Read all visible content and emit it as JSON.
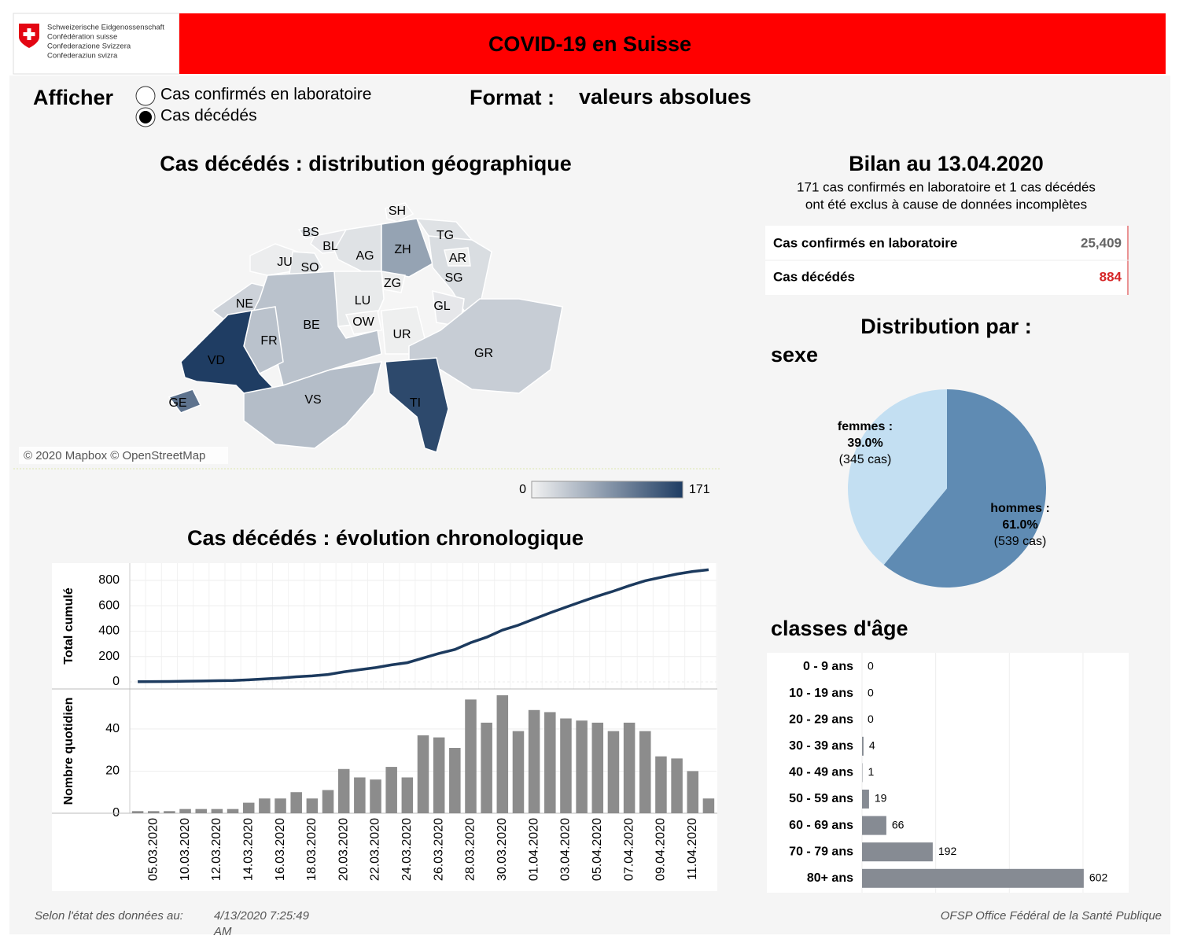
{
  "header": {
    "logo_lines": [
      "Schweizerische Eidgenossenschaft",
      "Confédération suisse",
      "Confederazione Svizzera",
      "Confederaziun svizra"
    ],
    "title": "COVID-19 en Suisse"
  },
  "controls": {
    "afficher_label": "Afficher",
    "options": [
      {
        "label": "Cas confirmés en laboratoire",
        "selected": false
      },
      {
        "label": "Cas décédés",
        "selected": true
      }
    ],
    "format_label": "Format :",
    "format_value": "valeurs absolues"
  },
  "map": {
    "title": "Cas décédés : distribution géographique",
    "attribution": "© 2020 Mapbox © OpenStreetMap",
    "legend_min": 0,
    "legend_max": 171,
    "color_low": "#f2f2f2",
    "color_high": "#1f3d63",
    "cantons": [
      {
        "code": "SH",
        "value": 2
      },
      {
        "code": "BS",
        "value": 20
      },
      {
        "code": "BL",
        "value": 10
      },
      {
        "code": "AG",
        "value": 15
      },
      {
        "code": "ZH",
        "value": 75
      },
      {
        "code": "TG",
        "value": 15
      },
      {
        "code": "SG",
        "value": 20
      },
      {
        "code": "AR",
        "value": 3
      },
      {
        "code": "JU",
        "value": 5
      },
      {
        "code": "SO",
        "value": 15
      },
      {
        "code": "ZG",
        "value": 3
      },
      {
        "code": "LU",
        "value": 8
      },
      {
        "code": "NE",
        "value": 30
      },
      {
        "code": "GL",
        "value": 10
      },
      {
        "code": "OW",
        "value": 2
      },
      {
        "code": "BE",
        "value": 45
      },
      {
        "code": "UR",
        "value": 3
      },
      {
        "code": "FR",
        "value": 45
      },
      {
        "code": "GR",
        "value": 35
      },
      {
        "code": "VD",
        "value": 171
      },
      {
        "code": "VS",
        "value": 50
      },
      {
        "code": "TI",
        "value": 160
      },
      {
        "code": "GE",
        "value": 120
      }
    ]
  },
  "summary": {
    "title": "Bilan au 13.04.2020",
    "note_lines": [
      "171 cas confirmés en laboratoire et 1 cas décédés",
      "ont été exclus à cause de données incomplètes"
    ],
    "rows": [
      {
        "label": "Cas confirmés en laboratoire",
        "value": 25409,
        "value_label": "25,409",
        "color": "#666666"
      },
      {
        "label": "Cas décédés",
        "value": 884,
        "color": "#d62728"
      }
    ]
  },
  "sex": {
    "title": "Distribution par :",
    "subtitle": "sexe",
    "type": "pie",
    "slices": [
      {
        "name": "hommes :",
        "value": 61.0,
        "value_label": "61.0%",
        "count": 539,
        "count_label": "(539 cas)",
        "color": "#5f8bb3"
      },
      {
        "name": "femmes :",
        "value": 39.0,
        "value_label": "39.0%",
        "count": 345,
        "count_label": "(345 cas)",
        "color": "#c3dff2"
      }
    ]
  },
  "age": {
    "title": "classes d'âge",
    "type": "bar",
    "categories": [
      "0 - 9 ans",
      "10 - 19 ans",
      "20 - 29 ans",
      "30 - 39 ans",
      "40 - 49 ans",
      "50 - 59 ans",
      "60 - 69 ans",
      "70 - 79 ans",
      "80+ ans"
    ],
    "values": [
      0,
      0,
      0,
      4,
      1,
      19,
      66,
      192,
      602
    ],
    "color": "#868b93",
    "xlim": [
      0,
      724
    ],
    "xticks": [
      0,
      200,
      400,
      600
    ],
    "grid": true
  },
  "timeline": {
    "title": "Cas décédés : évolution chronologique",
    "categories": [
      null,
      "05.03.2020",
      null,
      "10.03.2020",
      null,
      "12.03.2020",
      null,
      "14.03.2020",
      null,
      "16.03.2020",
      null,
      "18.03.2020",
      null,
      "20.03.2020",
      null,
      "22.03.2020",
      null,
      "24.03.2020",
      null,
      "26.03.2020",
      null,
      "28.03.2020",
      null,
      "30.03.2020",
      null,
      "01.04.2020",
      null,
      "03.04.2020",
      null,
      "05.04.2020",
      null,
      "07.04.2020",
      null,
      "09.04.2020",
      null,
      "11.04.2020",
      null
    ],
    "cumulative": {
      "type": "line",
      "axis_label": "Total cumulé",
      "color": "#1c3a5e",
      "ylim": [
        -56,
        936
      ],
      "yticks": [
        0,
        200,
        400,
        600,
        800
      ],
      "values": [
        1,
        2,
        3,
        5,
        7,
        9,
        11,
        16,
        23,
        30,
        40,
        47,
        58,
        79,
        96,
        112,
        134,
        151,
        188,
        224,
        255,
        309,
        352,
        408,
        447,
        496,
        544,
        589,
        633,
        676,
        715,
        758,
        797,
        824,
        850,
        870,
        884
      ]
    },
    "daily": {
      "type": "bar",
      "axis_label": "Nombre quotidien",
      "color": "#8c8c8c",
      "ylim": [
        0,
        59
      ],
      "yticks": [
        0,
        20,
        40
      ],
      "values": [
        1,
        1,
        1,
        2,
        2,
        2,
        2,
        5,
        7,
        7,
        10,
        7,
        11,
        21,
        17,
        16,
        22,
        17,
        37,
        36,
        31,
        54,
        43,
        56,
        39,
        49,
        48,
        45,
        44,
        43,
        39,
        43,
        39,
        27,
        26,
        20,
        7
      ]
    }
  },
  "footer": {
    "left_label": "Selon l'état des données au:",
    "timestamp_lines": [
      "4/13/2020 7:25:49",
      "AM"
    ],
    "right": "OFSP Office Fédéral de la Santé Publique"
  }
}
